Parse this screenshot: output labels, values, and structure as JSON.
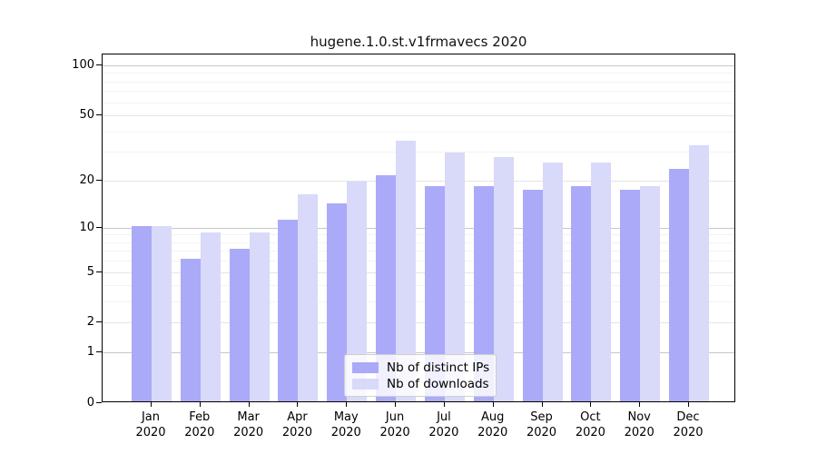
{
  "title": "hugene.1.0.st.v1frmavecs 2020",
  "chart_data": {
    "type": "bar",
    "title": "hugene.1.0.st.v1frmavecs 2020",
    "subtitle": "",
    "xlabel": "",
    "ylabel": "",
    "yscale": "log1p",
    "ylim": [
      0,
      116
    ],
    "grid": "on",
    "legend_position": "inside-bottom-center",
    "year": "2020",
    "categories": [
      "Jan",
      "Feb",
      "Mar",
      "Apr",
      "May",
      "Jun",
      "Jul",
      "Aug",
      "Sep",
      "Oct",
      "Nov",
      "Dec"
    ],
    "series": [
      {
        "name": "Nb of distinct IPs",
        "color": "#aaaaf9",
        "values": [
          10,
          6,
          7,
          11,
          14,
          21,
          18,
          18,
          17,
          18,
          17,
          23
        ]
      },
      {
        "name": "Nb of downloads",
        "color": "#d9d9f9",
        "values": [
          10,
          9,
          9,
          16,
          19,
          34,
          29,
          27,
          25,
          25,
          18,
          32
        ]
      }
    ],
    "yticks": [
      {
        "value": 0,
        "label": "0"
      },
      {
        "value": 1,
        "label": "1"
      },
      {
        "value": 2,
        "label": "2"
      },
      {
        "value": 5,
        "label": "5"
      },
      {
        "value": 10,
        "label": "10"
      },
      {
        "value": 20,
        "label": "20"
      },
      {
        "value": 50,
        "label": "50"
      },
      {
        "value": 100,
        "label": "100"
      }
    ],
    "strong_gridlines": [
      1,
      10,
      100
    ],
    "minor_gridlines": [
      3,
      4,
      6,
      7,
      8,
      9,
      30,
      40,
      60,
      70,
      80,
      90
    ]
  }
}
